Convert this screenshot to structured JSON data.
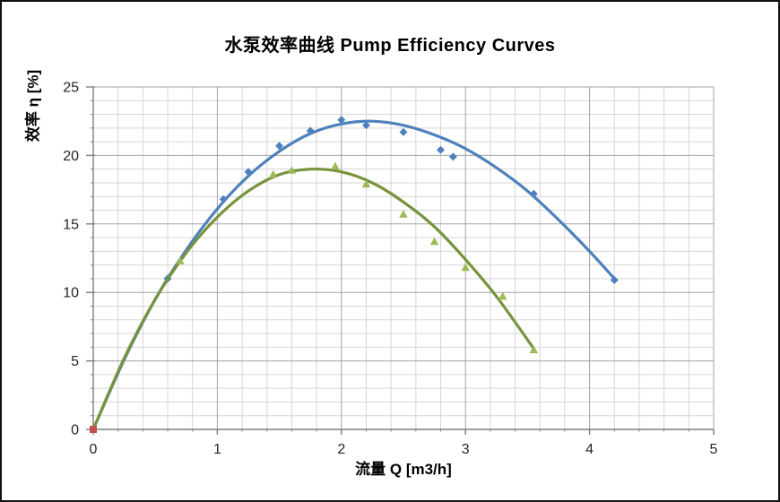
{
  "chart_data": {
    "type": "scatter",
    "title": "水泵效率曲线 Pump Efficiency Curves",
    "xlabel": "流量 Q [m3/h]",
    "ylabel": "效率 η [%]",
    "xlim": [
      0,
      5
    ],
    "ylim": [
      0,
      25
    ],
    "x_major_step": 1,
    "x_minor_step": 0.2,
    "y_major_step": 5,
    "y_minor_step": 1,
    "x_ticks": [
      "0",
      "1",
      "2",
      "3",
      "4",
      "5"
    ],
    "y_ticks": [
      "0",
      "5",
      "10",
      "15",
      "20",
      "25"
    ],
    "grid": "major+minor",
    "legend": "none",
    "colors": {
      "blue_series": "#4F81BD",
      "green_marker": "#9BBB59",
      "green_line": "#77933C",
      "red_marker": "#C0504D",
      "grid_minor": "#D6D6D6",
      "grid_major": "#A3A3A3",
      "axis": "#7F7F7F",
      "tick_text": "#262626"
    },
    "series": [
      {
        "id": "blue-efficiency-curve",
        "marker": "diamond",
        "marker_color": "#4F81BD",
        "line_color": "#4F81BD",
        "points": [
          [
            0.6,
            11.0
          ],
          [
            1.05,
            16.8
          ],
          [
            1.25,
            18.8
          ],
          [
            1.5,
            20.7
          ],
          [
            1.75,
            21.8
          ],
          [
            2.0,
            22.6
          ],
          [
            2.2,
            22.2
          ],
          [
            2.5,
            21.7
          ],
          [
            2.8,
            20.4
          ],
          [
            2.9,
            19.9
          ],
          [
            3.55,
            17.2
          ],
          [
            4.2,
            10.9
          ]
        ],
        "trend": [
          [
            0,
            0
          ],
          [
            0.25,
            5.1
          ],
          [
            0.5,
            9.5
          ],
          [
            0.75,
            13.1
          ],
          [
            1.0,
            16.1
          ],
          [
            1.25,
            18.5
          ],
          [
            1.5,
            20.3
          ],
          [
            1.75,
            21.6
          ],
          [
            2.0,
            22.3
          ],
          [
            2.25,
            22.5
          ],
          [
            2.5,
            22.2
          ],
          [
            2.75,
            21.5
          ],
          [
            3.0,
            20.5
          ],
          [
            3.25,
            19.1
          ],
          [
            3.5,
            17.4
          ],
          [
            3.75,
            15.3
          ],
          [
            4.0,
            13.0
          ],
          [
            4.2,
            11.0
          ]
        ]
      },
      {
        "id": "green-efficiency-curve",
        "marker": "triangle",
        "marker_color": "#9BBB59",
        "line_color": "#77933C",
        "points": [
          [
            0.7,
            12.3
          ],
          [
            1.45,
            18.6
          ],
          [
            1.6,
            18.9
          ],
          [
            1.95,
            19.2
          ],
          [
            2.2,
            17.9
          ],
          [
            2.5,
            15.7
          ],
          [
            2.75,
            13.7
          ],
          [
            3.0,
            11.8
          ],
          [
            3.3,
            9.7
          ],
          [
            3.55,
            5.8
          ]
        ],
        "trend": [
          [
            0,
            0
          ],
          [
            0.25,
            5.2
          ],
          [
            0.5,
            9.5
          ],
          [
            0.75,
            12.9
          ],
          [
            1.0,
            15.5
          ],
          [
            1.25,
            17.4
          ],
          [
            1.5,
            18.6
          ],
          [
            1.75,
            19.0
          ],
          [
            2.0,
            18.8
          ],
          [
            2.25,
            18.0
          ],
          [
            2.5,
            16.6
          ],
          [
            2.75,
            14.8
          ],
          [
            3.0,
            12.4
          ],
          [
            3.25,
            9.7
          ],
          [
            3.55,
            5.9
          ]
        ]
      },
      {
        "id": "origin-point",
        "marker": "square",
        "marker_color": "#C0504D",
        "line_color": "none",
        "points": [
          [
            0,
            0
          ]
        ],
        "trend": []
      }
    ]
  }
}
